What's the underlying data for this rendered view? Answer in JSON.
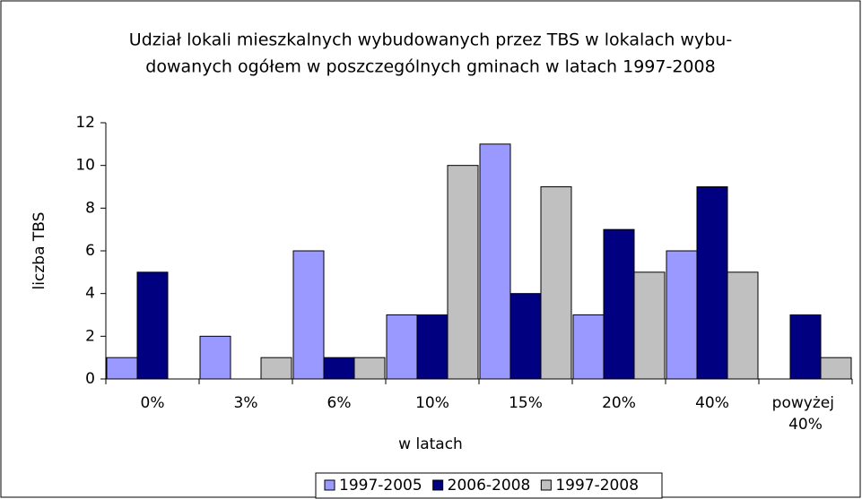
{
  "chart_data": {
    "type": "bar",
    "title": [
      "Udział lokali mieszkalnych wybudowanych przez TBS w lokalach wybu-",
      "dowanych ogółem w poszczególnych gminach w latach 1997-2008"
    ],
    "x_label": "w latach",
    "y_label": "liczba TBS",
    "categories": [
      "0%",
      "3%",
      "6%",
      "10%",
      "15%",
      "20%",
      "40%",
      "powyżej 40%"
    ],
    "series": [
      {
        "name": "1997-2005",
        "color": "#9999ff",
        "values": [
          1,
          2,
          6,
          3,
          11,
          3,
          6,
          0
        ]
      },
      {
        "name": "2006-2008",
        "color": "#000080",
        "values": [
          5,
          0,
          1,
          3,
          4,
          7,
          9,
          3
        ]
      },
      {
        "name": "1997-2008",
        "color": "#c0c0c0",
        "values": [
          0,
          1,
          1,
          10,
          9,
          5,
          5,
          1
        ]
      }
    ],
    "ylim": [
      0,
      12
    ],
    "yticks": [
      0,
      2,
      4,
      6,
      8,
      10,
      12
    ],
    "grid": false,
    "legend": "bottom"
  }
}
